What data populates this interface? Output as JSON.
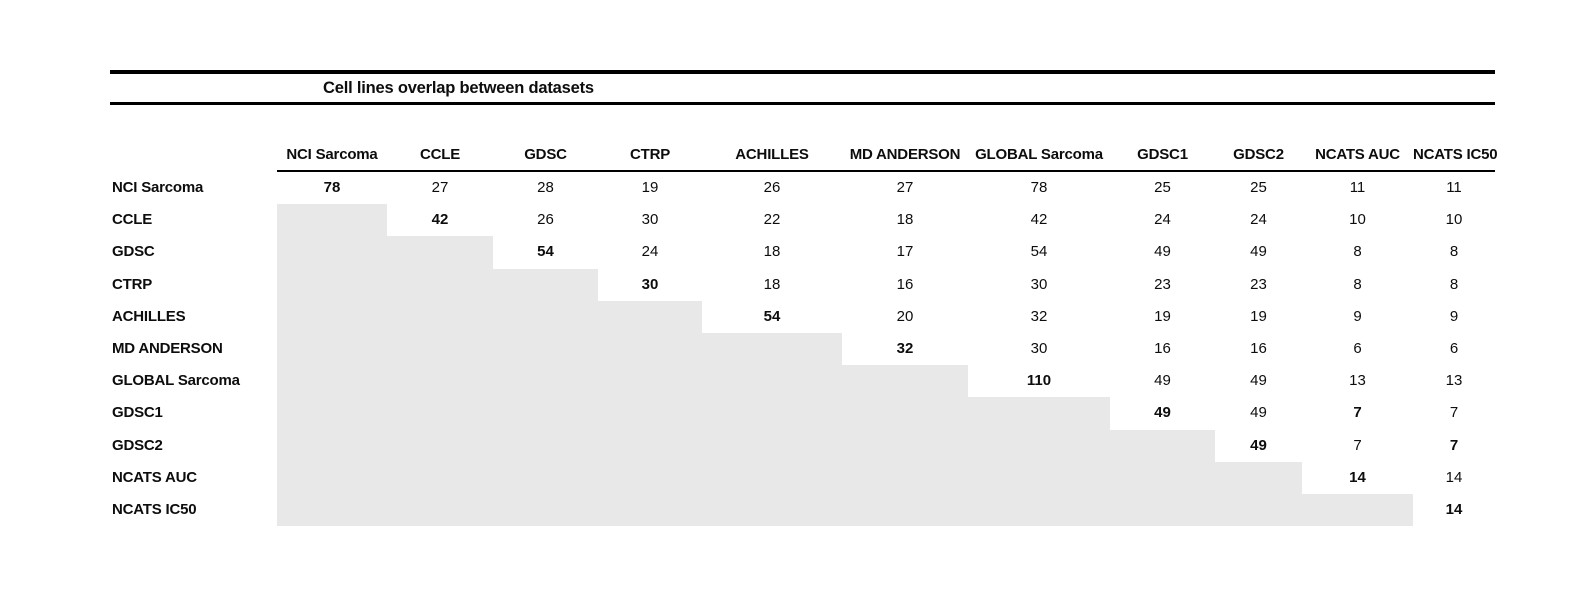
{
  "chart_data": {
    "type": "table",
    "title": "Cell lines overlap between datasets",
    "columns": [
      "NCI Sarcoma",
      "CCLE",
      "GDSC",
      "CTRP",
      "ACHILLES",
      "MD ANDERSON",
      "GLOBAL Sarcoma",
      "GDSC1",
      "GDSC2",
      "NCATS AUC",
      "NCATS IC50"
    ],
    "rows": [
      {
        "label": "NCI Sarcoma",
        "values": [
          78,
          27,
          28,
          19,
          26,
          27,
          78,
          25,
          25,
          11,
          11
        ],
        "bold_cols": [
          0
        ]
      },
      {
        "label": "CCLE",
        "values": [
          null,
          42,
          26,
          30,
          22,
          18,
          42,
          24,
          24,
          10,
          10
        ],
        "bold_cols": [
          1
        ]
      },
      {
        "label": "GDSC",
        "values": [
          null,
          null,
          54,
          24,
          18,
          17,
          54,
          49,
          49,
          8,
          8
        ],
        "bold_cols": [
          2
        ]
      },
      {
        "label": "CTRP",
        "values": [
          null,
          null,
          null,
          30,
          18,
          16,
          30,
          23,
          23,
          8,
          8
        ],
        "bold_cols": [
          3
        ]
      },
      {
        "label": "ACHILLES",
        "values": [
          null,
          null,
          null,
          null,
          54,
          20,
          32,
          19,
          19,
          9,
          9
        ],
        "bold_cols": [
          4
        ]
      },
      {
        "label": "MD ANDERSON",
        "values": [
          null,
          null,
          null,
          null,
          null,
          32,
          30,
          16,
          16,
          6,
          6
        ],
        "bold_cols": [
          5
        ]
      },
      {
        "label": "GLOBAL Sarcoma",
        "values": [
          null,
          null,
          null,
          null,
          null,
          null,
          110,
          49,
          49,
          13,
          13
        ],
        "bold_cols": [
          6
        ]
      },
      {
        "label": "GDSC1",
        "values": [
          null,
          null,
          null,
          null,
          null,
          null,
          null,
          49,
          49,
          7,
          7
        ],
        "bold_cols": [
          7,
          9
        ]
      },
      {
        "label": "GDSC2",
        "values": [
          null,
          null,
          null,
          null,
          null,
          null,
          null,
          null,
          49,
          7,
          7
        ],
        "bold_cols": [
          8,
          10
        ]
      },
      {
        "label": "NCATS AUC",
        "values": [
          null,
          null,
          null,
          null,
          null,
          null,
          null,
          null,
          null,
          14,
          14
        ],
        "bold_cols": [
          9
        ]
      },
      {
        "label": "NCATS IC50",
        "values": [
          null,
          null,
          null,
          null,
          null,
          null,
          null,
          null,
          null,
          null,
          14
        ],
        "bold_cols": [
          10
        ]
      }
    ],
    "layout_notes": "upper-triangular matrix; lower triangle shaded; diagonal values bold",
    "colors": {
      "shaded_cell": "#e8e8e8",
      "rule": "#000000",
      "text": "#0d0d0d",
      "background": "#ffffff"
    }
  }
}
